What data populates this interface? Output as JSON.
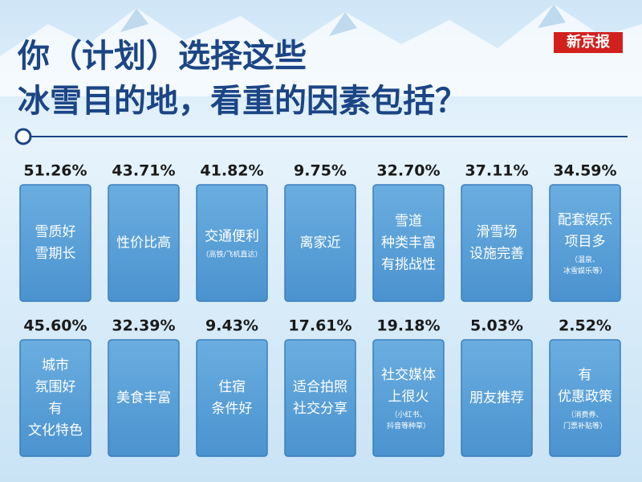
{
  "header": {
    "title": [
      "你（计划）选择这些",
      "冰雪目的地，看重的因素包括？"
    ],
    "brand": "新京报"
  },
  "cards": [
    [
      {
        "value": "51.26%",
        "label": [
          "雪质好",
          "雪期长"
        ]
      },
      {
        "value": "43.71%",
        "label": [
          "性价比高"
        ]
      },
      {
        "value": "41.82%",
        "label": [
          "交通便利"
        ],
        "note": [
          "（高铁/飞机直达）"
        ]
      },
      {
        "value": "9.75%",
        "label": [
          "离家近"
        ]
      },
      {
        "value": "32.70%",
        "label": [
          "雪道",
          "种类丰富",
          "有挑战性"
        ]
      },
      {
        "value": "37.11%",
        "label": [
          "滑雪场",
          "设施完善"
        ]
      },
      {
        "value": "34.59%",
        "label": [
          "配套娱乐",
          "项目多"
        ],
        "note": [
          "（温泉、",
          "冰雪娱乐等）"
        ]
      }
    ],
    [
      {
        "value": "45.60%",
        "label": [
          "城市",
          "氛围好",
          "有",
          "文化特色"
        ]
      },
      {
        "value": "32.39%",
        "label": [
          "美食丰富"
        ]
      },
      {
        "value": "9.43%",
        "label": [
          "住宿",
          "条件好"
        ]
      },
      {
        "value": "17.61%",
        "label": [
          "适合拍照",
          "社交分享"
        ]
      },
      {
        "value": "19.18%",
        "label": [
          "社交媒体",
          "上很火"
        ],
        "note": [
          "（小红书、",
          "抖音等种草）"
        ]
      },
      {
        "value": "5.03%",
        "label": [
          "朋友推荐"
        ]
      },
      {
        "value": "2.52%",
        "label": [
          "有",
          "优惠政策"
        ],
        "note": [
          "（消费券、",
          "门票补贴等）"
        ]
      }
    ]
  ]
}
